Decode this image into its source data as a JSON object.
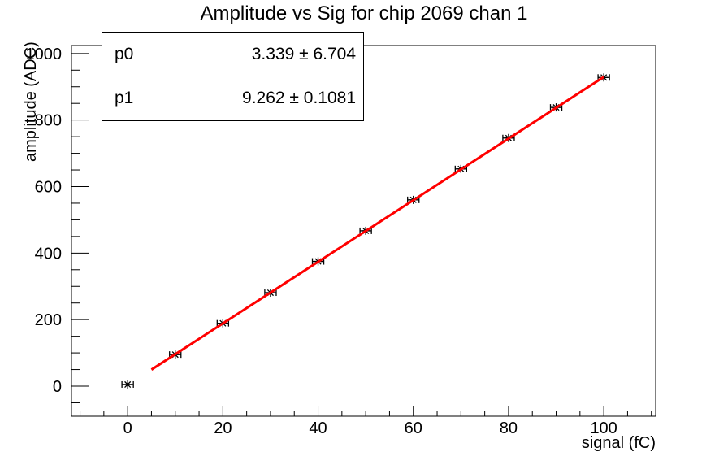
{
  "chart_data": {
    "type": "scatter",
    "title": "Amplitude vs Sig for chip 2069 chan 1",
    "xlabel": "signal (fC)",
    "ylabel": "amplitude (ADC)",
    "xlim": [
      -11.8,
      110.9
    ],
    "ylim": [
      -90.4,
      1024
    ],
    "x_ticks": [
      0,
      20,
      40,
      60,
      80,
      100
    ],
    "y_ticks": [
      0,
      200,
      400,
      600,
      800,
      1000
    ],
    "x_minor_step": 5,
    "y_minor_step": 50,
    "grid": false,
    "legend": "none",
    "points": {
      "x": [
        0,
        10,
        20,
        30,
        40,
        50,
        60,
        70,
        80,
        90,
        100
      ],
      "y": [
        5,
        95,
        189,
        281,
        375,
        467,
        560,
        653,
        746,
        838,
        928
      ],
      "x_err": 1.2,
      "marker": "asterisk-with-x-error-bars",
      "color": "#000000"
    },
    "fit_line": {
      "type": "linear",
      "p0": 3.339,
      "p1": 9.262,
      "x_range": [
        5,
        100
      ],
      "color": "#ff0000"
    }
  },
  "stats_box": {
    "rows": [
      {
        "name": "p0",
        "value": "3.339 ± 6.704"
      },
      {
        "name": "p1",
        "value": "9.262 ± 0.1081"
      }
    ]
  }
}
